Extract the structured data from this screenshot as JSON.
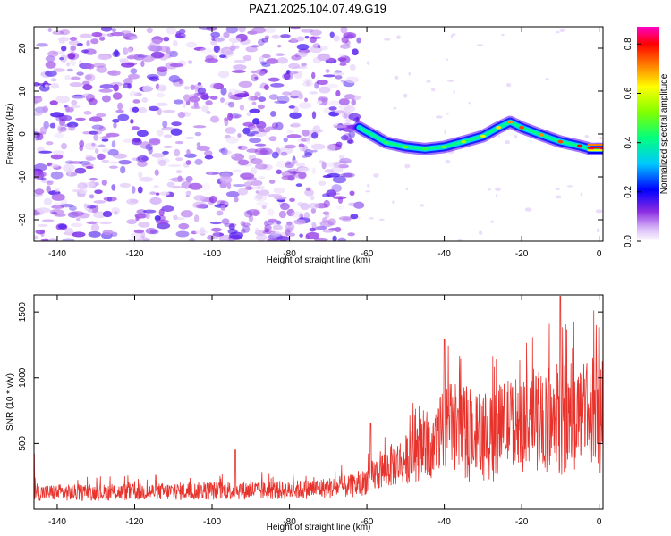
{
  "title": "PAZ1.2025.104.07.49.G19",
  "colors": {
    "snr_line": "#e8322c",
    "frame": "#000000"
  },
  "chart_data": [
    {
      "type": "heatmap",
      "title": "PAZ1.2025.104.07.49.G19",
      "xlabel": "Height of straight line (km)",
      "ylabel": "Frequency (Hz)",
      "xlim": [
        -146,
        1
      ],
      "ylim": [
        -25,
        25
      ],
      "x_ticks": [
        -140,
        -120,
        -100,
        -80,
        -60,
        -40,
        -20,
        0
      ],
      "x_tick_labels": [
        "-140",
        "-120",
        "-100",
        "-80",
        "-60",
        "-40",
        "-20",
        "0"
      ],
      "y_ticks": [
        -20,
        -10,
        0,
        10,
        20
      ],
      "y_tick_labels": [
        "-20",
        "-10",
        "0",
        "10",
        "20"
      ],
      "colorbar": {
        "label": "Normalized spectral amplitude",
        "range": [
          0,
          0.87
        ],
        "ticks": [
          0.0,
          0.2,
          0.4,
          0.6,
          0.8
        ],
        "tick_labels": [
          "0.0",
          "0.2",
          "0.4",
          "0.6",
          "0.8"
        ],
        "colormap": "rainbow"
      },
      "ridge": {
        "x": [
          -62,
          -58,
          -55,
          -50,
          -45,
          -40,
          -35,
          -30,
          -26,
          -23,
          -20,
          -15,
          -10,
          -5,
          -2,
          1
        ],
        "y": [
          1.5,
          -0.5,
          -2,
          -3,
          -3.5,
          -3,
          -1.8,
          -0.5,
          1.5,
          2.8,
          1.5,
          -0.2,
          -1.8,
          -2.8,
          -3.5,
          -3.5
        ],
        "amplitude": [
          0.35,
          0.4,
          0.45,
          0.5,
          0.45,
          0.5,
          0.55,
          0.6,
          0.65,
          0.7,
          0.75,
          0.7,
          0.75,
          0.8,
          0.85,
          0.87
        ]
      },
      "noise_region": {
        "x_range": [
          -146,
          -62
        ],
        "y_range": [
          -25,
          25
        ],
        "amplitude_range": [
          0.0,
          0.15
        ]
      }
    },
    {
      "type": "line",
      "xlabel": "Height of straight line (km)",
      "ylabel": "SNR (10 * v/v)",
      "xlim": [
        -146,
        1
      ],
      "ylim": [
        0,
        1630
      ],
      "x_ticks": [
        -140,
        -120,
        -100,
        -80,
        -60,
        -40,
        -20,
        0
      ],
      "x_tick_labels": [
        "-140",
        "-120",
        "-100",
        "-80",
        "-60",
        "-40",
        "-20",
        "0"
      ],
      "y_ticks": [
        500,
        1000,
        1500
      ],
      "y_tick_labels": [
        "500",
        "1000",
        "1500"
      ],
      "envelope": {
        "x": [
          -146,
          -130,
          -110,
          -90,
          -80,
          -70,
          -62,
          -60,
          -55,
          -50,
          -45,
          -42,
          -40,
          -35,
          -30,
          -25,
          -20,
          -15,
          -10,
          -5,
          0,
          1
        ],
        "y": [
          140,
          140,
          150,
          160,
          160,
          180,
          200,
          250,
          350,
          420,
          500,
          560,
          720,
          700,
          650,
          720,
          760,
          780,
          850,
          820,
          880,
          900
        ]
      },
      "spikes": [
        {
          "x": -146,
          "y": 420
        },
        {
          "x": -94,
          "y": 450
        },
        {
          "x": -59,
          "y": 650
        },
        {
          "x": -40,
          "y": 1290
        },
        {
          "x": -10,
          "y": 1620
        },
        {
          "x": 0,
          "y": 1380
        }
      ]
    }
  ]
}
